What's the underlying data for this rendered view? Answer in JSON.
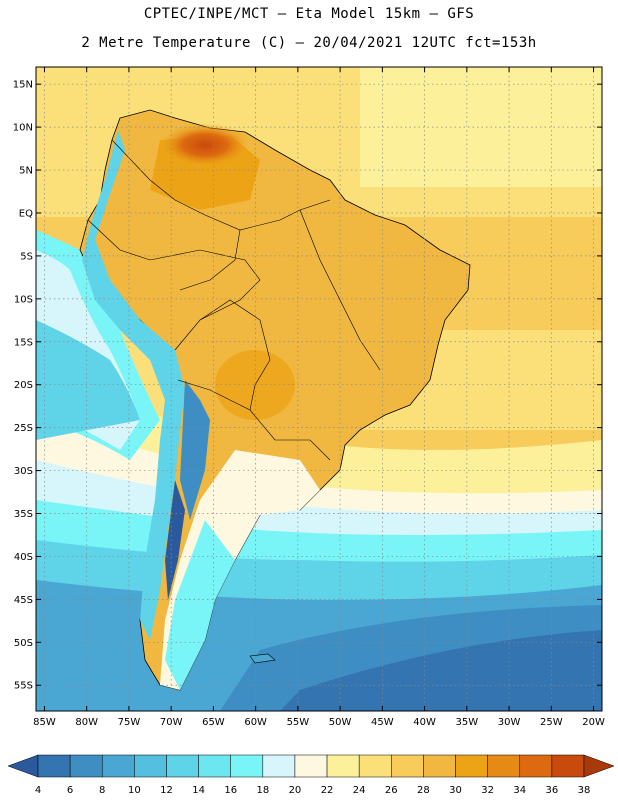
{
  "header": {
    "title_line1": "CPTEC/INPE/MCT –  Eta Model 15km – GFS",
    "title_line2": "2 Metre Temperature (C) – 20/04/2021 12UTC fct=153h"
  },
  "map": {
    "lat_labels": [
      "15N",
      "10N",
      "5N",
      "EQ",
      "5S",
      "10S",
      "15S",
      "20S",
      "25S",
      "30S",
      "35S",
      "40S",
      "45S",
      "50S",
      "55S"
    ],
    "lon_labels": [
      "85W",
      "80W",
      "75W",
      "70W",
      "65W",
      "60W",
      "55W",
      "50W",
      "45W",
      "40W",
      "35W",
      "30W",
      "25W",
      "20W"
    ],
    "lat_values": [
      15,
      10,
      5,
      0,
      -5,
      -10,
      -15,
      -20,
      -25,
      -30,
      -35,
      -40,
      -45,
      -50,
      -55
    ],
    "lon_values": [
      -85,
      -80,
      -75,
      -70,
      -65,
      -60,
      -55,
      -50,
      -45,
      -40,
      -35,
      -30,
      -25,
      -20
    ],
    "lat_range": [
      -58,
      17
    ],
    "lon_range": [
      -86,
      -19
    ]
  },
  "colorbar": {
    "labels": [
      "4",
      "6",
      "8",
      "10",
      "12",
      "14",
      "16",
      "18",
      "20",
      "22",
      "24",
      "26",
      "28",
      "30",
      "32",
      "34",
      "36",
      "38"
    ],
    "colors": [
      "#2a5a9c",
      "#3474b0",
      "#3e8ec3",
      "#4aa7d3",
      "#55bfe0",
      "#5fd3e8",
      "#6ce6ef",
      "#7af5f7",
      "#d6f6fb",
      "#fff8e0",
      "#fdf09a",
      "#fbe07a",
      "#f7cc5a",
      "#f0b840",
      "#eca416",
      "#e58a14",
      "#dd6a10",
      "#c84a0c",
      "#a83a0a"
    ]
  }
}
